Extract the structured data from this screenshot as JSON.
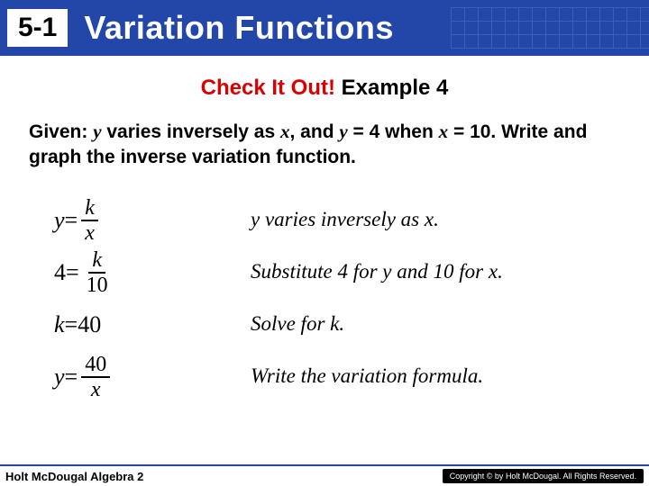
{
  "header": {
    "lesson_badge": "5-1",
    "title": "Variation Functions",
    "bg_color": "#2247a8",
    "text_color": "#ffffff"
  },
  "subtitle": {
    "red_part": "Check It Out!",
    "black_part": " Example 4",
    "red_color": "#d90000"
  },
  "problem": {
    "line1_a": "Given: ",
    "line1_b": "y",
    "line1_c": " varies inversely as ",
    "line1_d": "x",
    "line1_e": ", and ",
    "line1_f": "y",
    "line1_g": " = 4 when ",
    "line1_h": "x",
    "line1_i": " = 10. Write and graph the inverse variation function."
  },
  "equations": [
    {
      "lhs": "y",
      "eq": " = ",
      "num": "k",
      "den": "x"
    },
    {
      "lhs": "4",
      "eq": " = ",
      "num": "k",
      "den": "10"
    },
    {
      "plain_lhs": "k",
      "plain_eq": " = ",
      "plain_rhs": "40"
    },
    {
      "lhs": "y",
      "eq": " = ",
      "num": "40",
      "den": "x"
    }
  ],
  "explanations": [
    "y varies inversely as x.",
    "Substitute 4 for y and 10 for x.",
    "Solve for k.",
    "Write the variation formula."
  ],
  "footer": {
    "left": "Holt McDougal Algebra 2",
    "right": "Copyright © by Holt McDougal. All Rights Reserved."
  }
}
